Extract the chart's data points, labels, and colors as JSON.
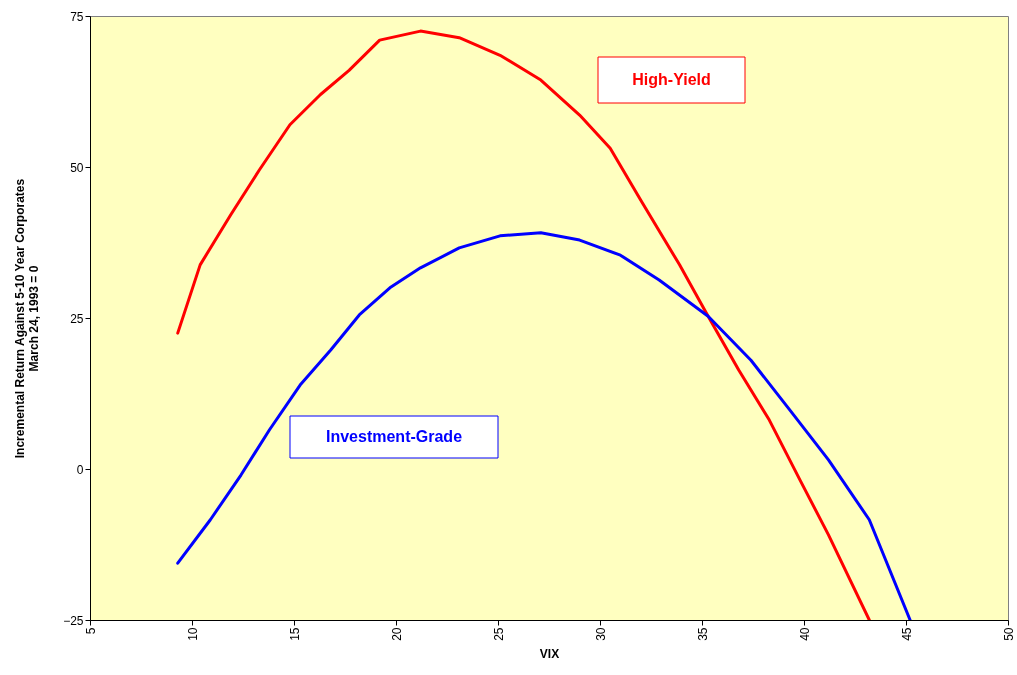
{
  "chart_data": {
    "type": "line",
    "xlabel": "VIX",
    "ylabel": "Incremental Return Against 5-10 Year Corporates\nMarch 24, 1993 = 0",
    "xlim": [
      5,
      50
    ],
    "xticks": [
      5,
      10,
      15,
      20,
      25,
      30,
      35,
      40,
      45,
      50
    ],
    "ylim": [
      -25,
      75
    ],
    "yticks": [
      -25,
      0,
      25,
      50,
      75
    ],
    "grid": false,
    "marker": "none",
    "line_style": "solid",
    "series": [
      {
        "name": "High-Yield",
        "color": "#ff0000",
        "x": [
          9.3,
          10.4,
          11.9,
          13.3,
          14.8,
          16.3,
          17.7,
          19.2,
          21.2,
          23.1,
          25.1,
          27.1,
          29.0,
          30.5,
          32.0,
          33.9,
          35.3,
          36.8,
          38.3,
          39.8,
          41.2,
          43.2
        ],
        "values": [
          22.5,
          33.8,
          42.1,
          49.5,
          57,
          62,
          66,
          71,
          72.5,
          71.4,
          68.5,
          64.4,
          58.6,
          53.1,
          44.5,
          33.8,
          25.3,
          16.4,
          8.1,
          -1.8,
          -10.9,
          -25
        ]
      },
      {
        "name": "Investment-Grade",
        "color": "#0000ff",
        "x": [
          9.3,
          10.9,
          12.4,
          13.8,
          15.3,
          16.8,
          18.2,
          19.7,
          21.2,
          23.1,
          25.1,
          27.1,
          29.0,
          31.0,
          32.9,
          35.3,
          37.4,
          39.3,
          41.2,
          43.2,
          45.2
        ],
        "values": [
          -15.6,
          -8.4,
          -1,
          6.5,
          13.9,
          19.7,
          25.5,
          30,
          33.3,
          36.6,
          38.6,
          39.1,
          37.9,
          35.4,
          31.3,
          25.3,
          18,
          9.8,
          1.5,
          -8.4,
          -25
        ]
      }
    ]
  }
}
